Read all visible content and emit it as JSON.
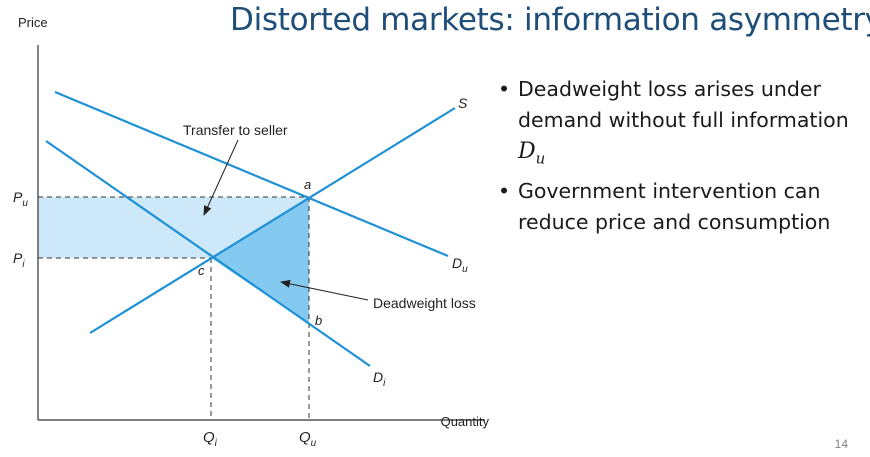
{
  "slide": {
    "title": "Distorted markets: information asymmetry",
    "page_number": "14",
    "bullets": [
      {
        "text": "Deadweight loss arises under demand without full information",
        "math": "D",
        "math_sub": "u"
      },
      {
        "text": "Government intervention can reduce price and consumption"
      }
    ]
  },
  "diagram": {
    "axes": {
      "y": "Price",
      "x": "Quantity"
    },
    "ticks": {
      "price_high": {
        "base": "P",
        "sub": "u"
      },
      "price_low": {
        "base": "P",
        "sub": "i"
      },
      "qty_low": {
        "base": "Q",
        "sub": "i"
      },
      "qty_high": {
        "base": "Q",
        "sub": "u"
      }
    },
    "curves": {
      "supply": "S",
      "demand_uninformed": {
        "base": "D",
        "sub": "u"
      },
      "demand_informed": {
        "base": "D",
        "sub": "i"
      }
    },
    "points": {
      "a": "a",
      "b": "b",
      "c": "c"
    },
    "annotations": {
      "transfer": "Transfer to seller",
      "deadweight": "Deadweight loss"
    },
    "colors": {
      "line": "#1e90d6",
      "transfer_fill": "#cde9f9",
      "deadweight_fill": "#84caf0",
      "title": "#1f4e79"
    }
  }
}
